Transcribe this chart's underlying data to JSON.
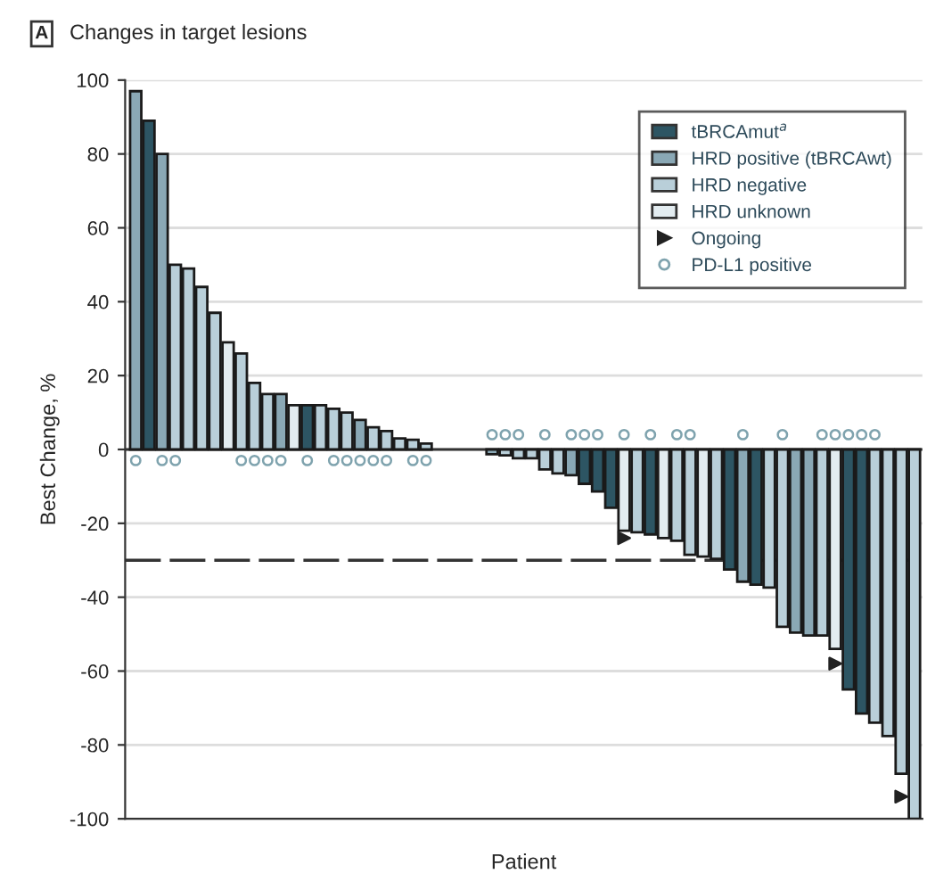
{
  "chart_data": {
    "type": "bar",
    "title": "Changes in target lesions",
    "annotations": [
      "A"
    ],
    "xlabel": "Patient",
    "ylabel": "Best Change, %",
    "categories": [
      null,
      null,
      null,
      null,
      null,
      null,
      null,
      null,
      null,
      null,
      null,
      null,
      null,
      null,
      null,
      null,
      null,
      null,
      null,
      null,
      null,
      null,
      null,
      null,
      null,
      null,
      null,
      null,
      null,
      null,
      null,
      null,
      null,
      null,
      null,
      null,
      null,
      null,
      null,
      null,
      null,
      null,
      null,
      null,
      null,
      null,
      null,
      null,
      null,
      null,
      null,
      null,
      null,
      null,
      null,
      null,
      null,
      null,
      null,
      null
    ],
    "series": [
      {
        "name": "tBRCAmut$^{a}$",
        "color": "#2d5563",
        "values": [
          null,
          89,
          null,
          null,
          null,
          null,
          null,
          null,
          null,
          null,
          null,
          null,
          null,
          12,
          null,
          null,
          null,
          null,
          null,
          null,
          null,
          null,
          null,
          null,
          null,
          null,
          null,
          null,
          null,
          null,
          null,
          null,
          null,
          null,
          -9.3,
          -11.4,
          -15.8,
          null,
          null,
          -23,
          null,
          null,
          null,
          null,
          null,
          -32.5,
          null,
          -36.6,
          null,
          null,
          null,
          null,
          null,
          null,
          -65,
          -71.5,
          null,
          null,
          null,
          null
        ]
      },
      {
        "name": "HRD positive (tBRCAwt)",
        "color": "#8aa8b5",
        "values": [
          97,
          null,
          80,
          null,
          null,
          null,
          null,
          null,
          null,
          null,
          null,
          15,
          null,
          null,
          null,
          null,
          null,
          8,
          null,
          null,
          null,
          null,
          null,
          null,
          null,
          null,
          null,
          -1.3,
          null,
          null,
          null,
          null,
          null,
          -7,
          null,
          null,
          null,
          null,
          null,
          null,
          null,
          null,
          null,
          null,
          null,
          null,
          -35.8,
          null,
          null,
          null,
          -49.6,
          -50.4,
          null,
          null,
          null,
          null,
          null,
          null,
          null,
          null
        ]
      },
      {
        "name": "HRD negative",
        "color": "#b9cfd9",
        "values": [
          null,
          null,
          null,
          50,
          49,
          44,
          37,
          null,
          26,
          18,
          15,
          null,
          null,
          null,
          12,
          11,
          10,
          null,
          6,
          5,
          3,
          2.6,
          1.6,
          null,
          null,
          null,
          null,
          null,
          -1.6,
          -2.4,
          -2.4,
          -5.4,
          -6.5,
          null,
          null,
          null,
          null,
          null,
          -22.4,
          null,
          null,
          -24.7,
          -28.5,
          null,
          -29.6,
          null,
          null,
          null,
          -37.4,
          -48,
          null,
          null,
          -50.4,
          null,
          null,
          null,
          -74,
          -77.6,
          -87.8,
          -100
        ]
      },
      {
        "name": "HRD unknown",
        "color": "#e3ecf0",
        "values": [
          null,
          null,
          null,
          null,
          null,
          null,
          null,
          29,
          null,
          null,
          null,
          null,
          12,
          null,
          null,
          null,
          null,
          null,
          null,
          null,
          null,
          null,
          null,
          null,
          null,
          null,
          null,
          null,
          null,
          null,
          null,
          null,
          null,
          null,
          null,
          null,
          null,
          -22,
          null,
          null,
          -24,
          null,
          null,
          -29,
          null,
          null,
          null,
          null,
          null,
          null,
          null,
          null,
          null,
          -54,
          null,
          null,
          null,
          null,
          null,
          null
        ]
      },
      {
        "name": "Ongoing",
        "type": "scatter",
        "marker": "triangle",
        "color": "#222222",
        "values": [
          null,
          null,
          null,
          null,
          null,
          null,
          null,
          null,
          null,
          null,
          null,
          null,
          null,
          null,
          null,
          null,
          null,
          null,
          null,
          null,
          null,
          null,
          null,
          null,
          null,
          null,
          null,
          null,
          null,
          null,
          null,
          null,
          null,
          null,
          null,
          null,
          null,
          -24,
          null,
          null,
          null,
          null,
          null,
          null,
          null,
          null,
          null,
          null,
          null,
          null,
          null,
          null,
          null,
          -58,
          null,
          null,
          null,
          null,
          -94,
          null
        ]
      },
      {
        "name": "PD-L1 positive",
        "type": "scatter",
        "marker": "circle",
        "color": "#7fa3ae",
        "values": [
          -3,
          null,
          -3,
          -3,
          null,
          null,
          null,
          null,
          -3,
          -3,
          -3,
          -3,
          null,
          -3,
          null,
          -3,
          -3,
          -3,
          -3,
          -3,
          null,
          -3,
          -3,
          null,
          null,
          null,
          null,
          4,
          4,
          4,
          null,
          4,
          null,
          4,
          4,
          4,
          null,
          4,
          null,
          4,
          null,
          4,
          4,
          null,
          null,
          null,
          4,
          null,
          null,
          4,
          null,
          null,
          4,
          4,
          4,
          4,
          4,
          null,
          null,
          null
        ]
      }
    ],
    "ylim": [
      -100,
      100
    ],
    "yticks": [
      -100,
      -80,
      -60,
      -40,
      -20,
      0,
      20,
      40,
      60,
      80,
      100
    ],
    "ref_lines": [
      {
        "axis": "y",
        "value": -30,
        "color": "#333333",
        "line_style": "dashed"
      }
    ],
    "grid": "y",
    "legend": "top right"
  }
}
